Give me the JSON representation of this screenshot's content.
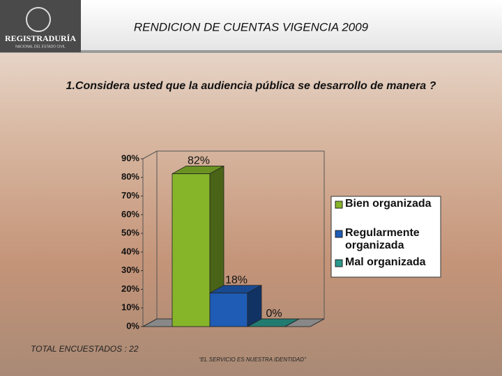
{
  "slide": {
    "logo_text": "REGISTRADURÍA",
    "logo_subtext": "NACIONAL DEL ESTADO CIVIL",
    "title": "RENDICION DE CUENTAS VIGENCIA 2009",
    "footer_left": "TOTAL ENCUESTADOS : 22",
    "footer_center": "“EL SERVICIO ES NUESTRA IDENTIDAD”"
  },
  "chart_data": {
    "type": "bar3d",
    "title": "1.Considera usted que la audiencia pública se desarrollo de manera ?",
    "categories": [
      "Bien organizada",
      "Regularmente organizada",
      "Mal organizada"
    ],
    "values": [
      82,
      18,
      0
    ],
    "value_labels": [
      "82%",
      "18%",
      "0%"
    ],
    "colors": [
      "#86b52a",
      "#1f5cb5",
      "#2a9a8c"
    ],
    "ylim": [
      0,
      90
    ],
    "yticks": [
      {
        "value": 0,
        "label": "0%"
      },
      {
        "value": 10,
        "label": "10%"
      },
      {
        "value": 20,
        "label": "20%"
      },
      {
        "value": 30,
        "label": "30%"
      },
      {
        "value": 40,
        "label": "40%"
      },
      {
        "value": 50,
        "label": "50%"
      },
      {
        "value": 60,
        "label": "60%"
      },
      {
        "value": 70,
        "label": "70%"
      },
      {
        "value": 80,
        "label": "80%"
      },
      {
        "value": 90,
        "label": "90%"
      }
    ],
    "legend": "right"
  }
}
